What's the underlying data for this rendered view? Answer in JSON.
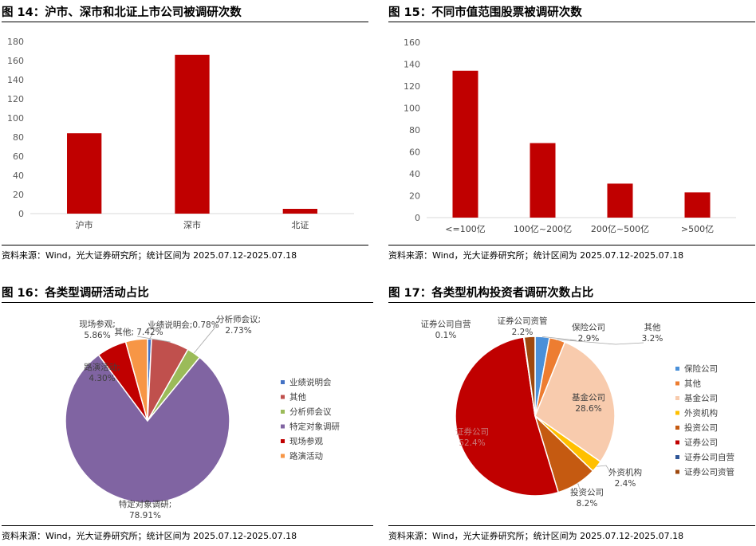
{
  "charts": [
    {
      "title": "图 14：沪市、深市和北证上市公司被调研次数",
      "source": "资料来源：Wind，光大证券研究所；统计区间为 2025.07.12-2025.07.18",
      "chart_data": {
        "type": "bar",
        "categories": [
          "沪市",
          "深市",
          "北证"
        ],
        "values": [
          84,
          166,
          5
        ],
        "ylim": [
          0,
          180
        ],
        "yticks": [
          "0",
          "20",
          "40",
          "60",
          "80",
          "100",
          "120",
          "140",
          "160",
          "180"
        ],
        "color": "#c00000",
        "grid": false
      }
    },
    {
      "title": "图 15：不同市值范围股票被调研次数",
      "source": "资料来源：Wind，光大证券研究所；统计区间为 2025.07.12-2025.07.18",
      "chart_data": {
        "type": "bar",
        "categories": [
          "<=100亿",
          "100亿~200亿",
          "200亿~500亿",
          ">500亿"
        ],
        "values": [
          134,
          68,
          31,
          23
        ],
        "ylim": [
          0,
          160
        ],
        "yticks": [
          "0",
          "20",
          "40",
          "60",
          "80",
          "100",
          "120",
          "140",
          "160"
        ],
        "color": "#c00000",
        "grid": false
      }
    },
    {
      "title": "图 16：各类型调研活动占比",
      "source": "资料来源：Wind，光大证券研究所；统计区间为 2025.07.12-2025.07.18",
      "chart_data": {
        "type": "pie",
        "legend_position": "right",
        "slices": [
          {
            "name": "业绩说明会",
            "value": 0.78,
            "label": "业绩说明会;0.78%",
            "color": "#4472c4"
          },
          {
            "name": "其他",
            "value": 7.42,
            "label": "其他; 7.42%",
            "color": "#c0504d"
          },
          {
            "name": "分析师会议",
            "value": 2.73,
            "label": "分析师会议;\n2.73%",
            "color": "#9bbb59"
          },
          {
            "name": "特定对象调研",
            "value": 78.91,
            "label": "特定对象调研;\n78.91%",
            "color": "#8064a2"
          },
          {
            "name": "现场参观",
            "value": 5.86,
            "label": "现场参观;\n5.86%",
            "color": "#c00000"
          },
          {
            "name": "路演活动",
            "value": 4.3,
            "label": "路演活动;\n4.30%",
            "color": "#f79646"
          }
        ]
      }
    },
    {
      "title": "图 17：各类型机构投资者调研次数占比",
      "source": "资料来源：Wind，光大证券研究所；统计区间为 2025.07.12-2025.07.18",
      "chart_data": {
        "type": "pie",
        "legend_position": "right",
        "slices": [
          {
            "name": "保险公司",
            "value": 2.9,
            "label": "保险公司\n2.9%",
            "color": "#4a90d9"
          },
          {
            "name": "其他",
            "value": 3.2,
            "label": "其他\n3.2%",
            "color": "#ed7d31"
          },
          {
            "name": "基金公司",
            "value": 28.6,
            "label": "基金公司\n28.6%",
            "color": "#f8cbad"
          },
          {
            "name": "外资机构",
            "value": 2.4,
            "label": "外资机构\n2.4%",
            "color": "#ffc000"
          },
          {
            "name": "投资公司",
            "value": 8.2,
            "label": "投资公司\n8.2%",
            "color": "#c55a11"
          },
          {
            "name": "证券公司",
            "value": 52.4,
            "label": "证券公司\n52.4%",
            "color": "#c00000"
          },
          {
            "name": "证券公司自营",
            "value": 0.1,
            "label": "证券公司自营\n0.1%",
            "color": "#2f5597"
          },
          {
            "name": "证券公司资管",
            "value": 2.2,
            "label": "证券公司资管\n2.2%",
            "color": "#9e480e"
          }
        ]
      }
    }
  ]
}
